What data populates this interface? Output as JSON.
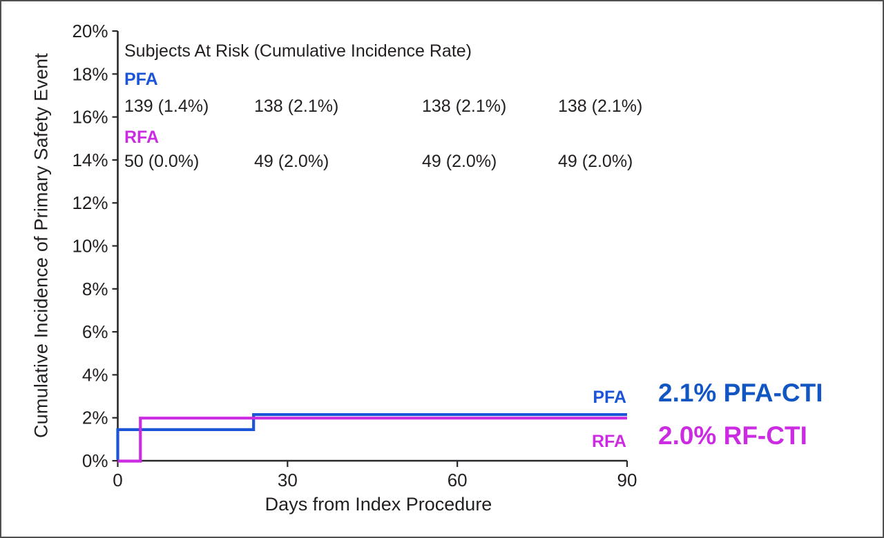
{
  "frame": {
    "background": "#ffffff",
    "border_color": "#4f4f4f"
  },
  "chart_data": {
    "type": "line",
    "line_style": "step-post",
    "title": "",
    "xlabel": "Days from Index Procedure",
    "ylabel": "Cumulative Incidence of Primary Safety Event",
    "xlim": [
      0,
      90
    ],
    "ylim": [
      0,
      20
    ],
    "x_ticks": [
      0,
      30,
      60,
      90
    ],
    "y_ticks": [
      0,
      2,
      4,
      6,
      8,
      10,
      12,
      14,
      16,
      18,
      20
    ],
    "y_tick_suffix": "%",
    "grid": false,
    "axis_color": "#2a272b",
    "text_color": "#231f20",
    "series": [
      {
        "name": "PFA",
        "color": "#1b54d6",
        "end_label": "PFA",
        "steps": [
          [
            0,
            0
          ],
          [
            0,
            1.4
          ],
          [
            24,
            1.4
          ],
          [
            24,
            2.1
          ],
          [
            90,
            2.1
          ]
        ]
      },
      {
        "name": "RFA",
        "color": "#cb2ce2",
        "end_label": "RFA",
        "steps": [
          [
            0,
            0
          ],
          [
            4,
            0
          ],
          [
            4,
            2.0
          ],
          [
            90,
            2.0
          ]
        ]
      }
    ],
    "annotations": [
      {
        "text": "2.1% PFA-CTI",
        "color": "#1156c2"
      },
      {
        "text": "2.0% RF-CTI",
        "color": "#cb2ce2"
      }
    ]
  },
  "at_risk": {
    "header": "Subjects At Risk (Cumulative Incidence Rate)",
    "groups": [
      {
        "label": "PFA",
        "color": "#1b54d6",
        "values": [
          "139 (1.4%)",
          "138 (2.1%)",
          "138 (2.1%)",
          "138 (2.1%)"
        ]
      },
      {
        "label": "RFA",
        "color": "#cb2ce2",
        "values": [
          "50 (0.0%)",
          "49 (2.0%)",
          "49 (2.0%)",
          "49 (2.0%)"
        ]
      }
    ]
  }
}
